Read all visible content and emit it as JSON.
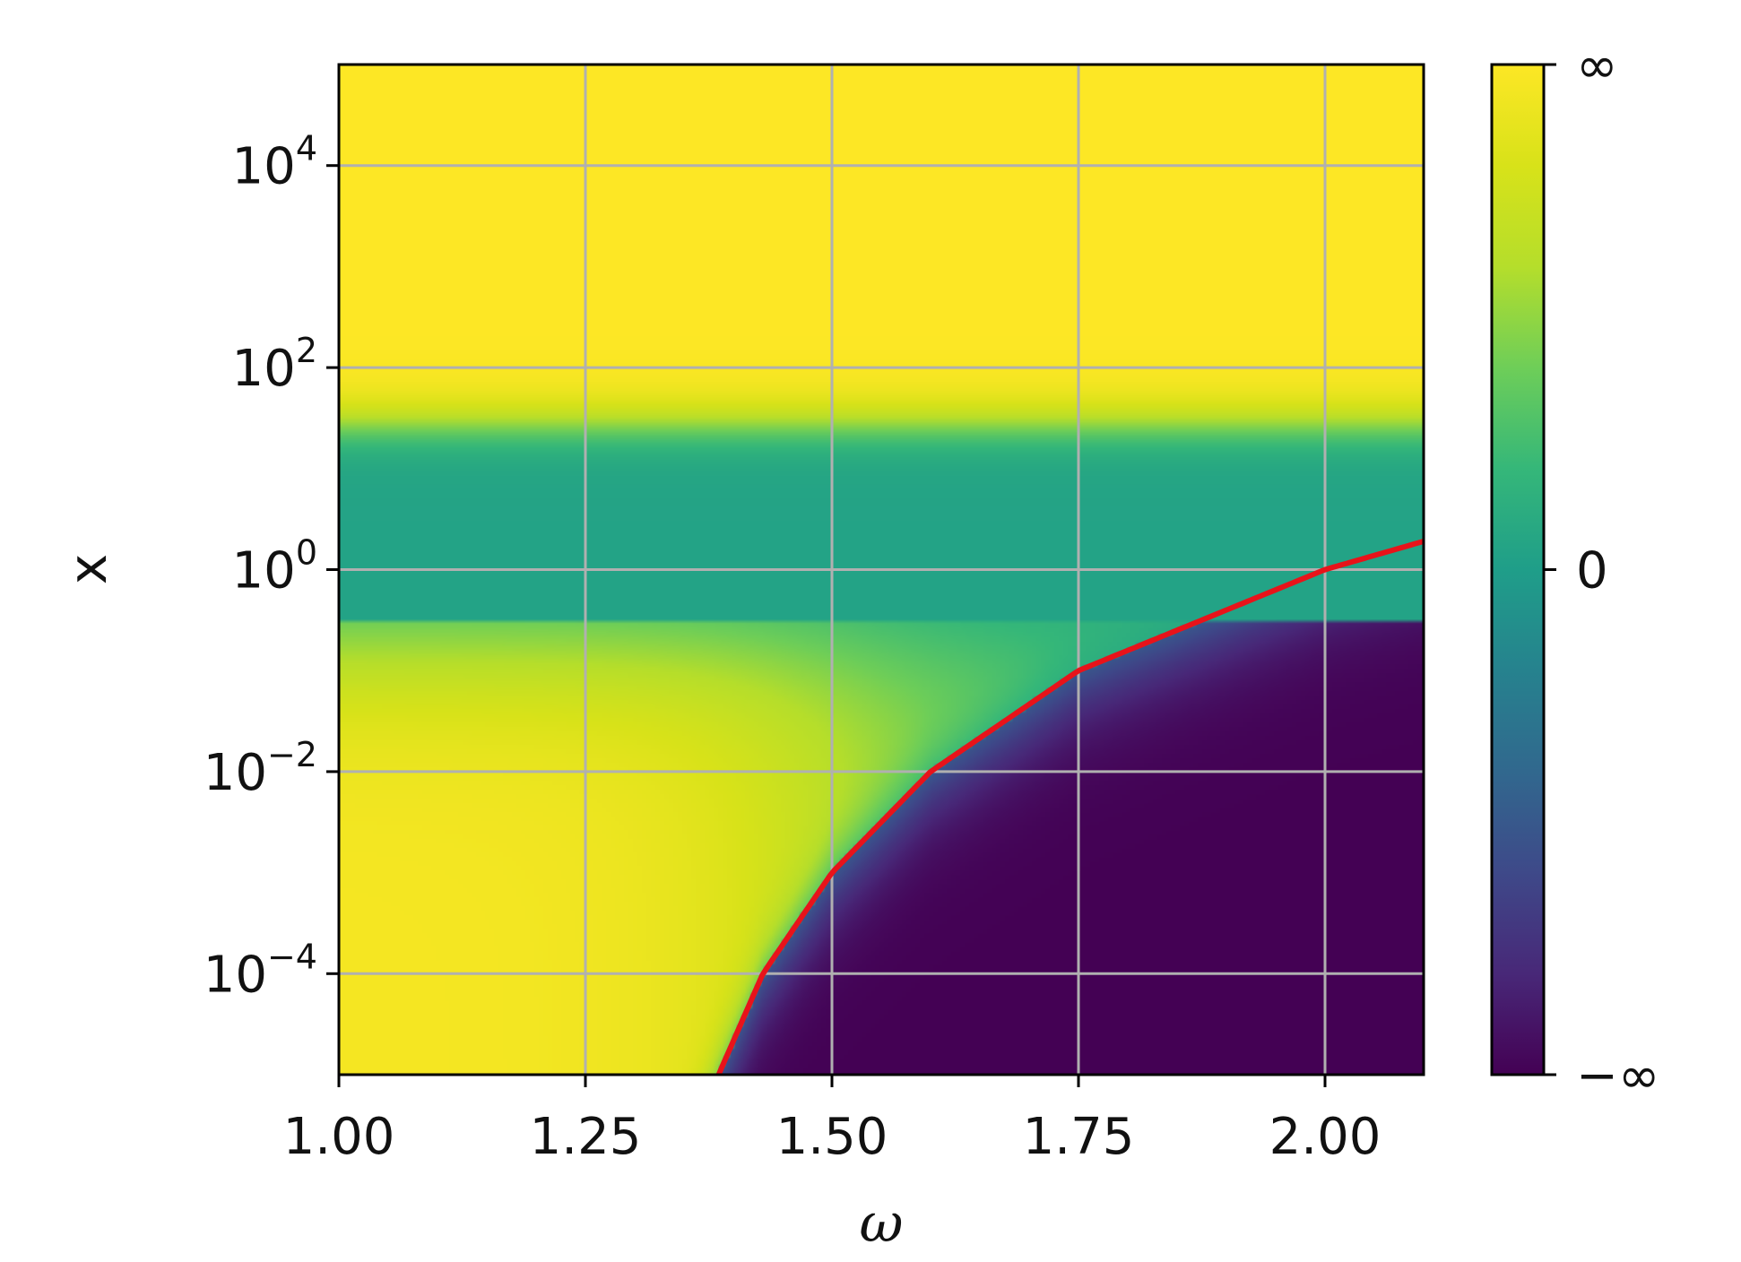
{
  "chart_data": {
    "type": "heatmap",
    "title": "",
    "xlabel": "ω",
    "ylabel": "x",
    "xlim": [
      1.0,
      2.1
    ],
    "ylim_log10": [
      -5,
      5
    ],
    "yscale": "log",
    "grid": true,
    "x_ticks": [
      {
        "value": 1.0,
        "label": "1.00"
      },
      {
        "value": 1.25,
        "label": "1.25"
      },
      {
        "value": 1.5,
        "label": "1.50"
      },
      {
        "value": 1.75,
        "label": "1.75"
      },
      {
        "value": 2.0,
        "label": "2.00"
      }
    ],
    "y_ticks": [
      {
        "log10": 4,
        "base": "10",
        "exp": "4"
      },
      {
        "log10": 2,
        "base": "10",
        "exp": "2"
      },
      {
        "log10": 0,
        "base": "10",
        "exp": "0"
      },
      {
        "log10": -2,
        "base": "10",
        "exp": "−2"
      },
      {
        "log10": -4,
        "base": "10",
        "exp": "−4"
      }
    ],
    "colormap": "viridis",
    "colorbar": {
      "ticks": [
        {
          "position": 1.0,
          "label": "∞"
        },
        {
          "position": 0.5,
          "label": "0"
        },
        {
          "position": 0.0,
          "label": "−∞"
        }
      ]
    },
    "curve": {
      "color": "#e8131a",
      "points": [
        {
          "x": 1.385,
          "log10_y": -5.0
        },
        {
          "x": 1.43,
          "log10_y": -4.0
        },
        {
          "x": 1.5,
          "log10_y": -3.0
        },
        {
          "x": 1.6,
          "log10_y": -2.0
        },
        {
          "x": 1.75,
          "log10_y": -1.0
        },
        {
          "x": 2.0,
          "log10_y": 0.0
        },
        {
          "x": 2.1,
          "log10_y": 0.28
        }
      ]
    }
  }
}
